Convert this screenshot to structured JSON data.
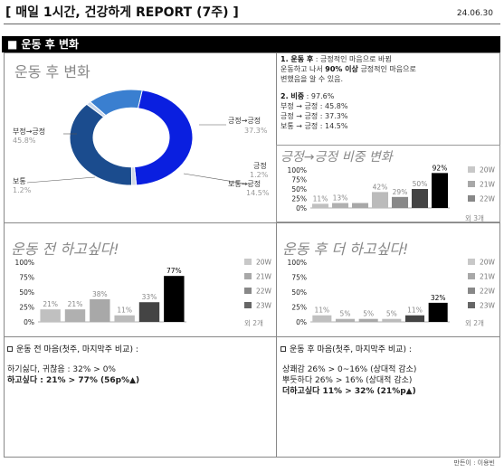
{
  "header": {
    "title": "[ 매일 1시간, 건강하게 REPORT (7주) ]",
    "date": "24.06.30"
  },
  "section_bar": "■ 운동 후 변화",
  "donut": {
    "title": "운동 후 변화",
    "labels": [
      {
        "name": "부정→긍정",
        "pct": "45.8%"
      },
      {
        "name": "보통",
        "pct": "1.2%"
      },
      {
        "name": "긍정→긍정",
        "pct": "37.3%"
      },
      {
        "name": "긍정",
        "pct": "1.2%"
      },
      {
        "name": "보통→긍정",
        "pct": "14.5%"
      }
    ],
    "colors": [
      "#0a1fe0",
      "#1b4c8e",
      "#3a7fd0",
      "#c8d6ec"
    ]
  },
  "notes": {
    "n1_title": "1. 운동 후",
    "n1_a": " : 긍정적인 마음으로 바뀜",
    "n1_b": "운동하고 나서",
    "n1_bold": "90% 이상",
    "n1_c": " 긍정적인 마음으로",
    "n1_d": "변했음을 알 수 있음.",
    "n2_title": "2. 비중",
    "n2_a": " : 97.6%",
    "n2_lines": [
      "부정 → 긍정 : 45.8%",
      "긍정 → 긍정 : 37.3%",
      "보통 → 긍정 : 14.5%"
    ]
  },
  "charts": {
    "ratio": {
      "title": "긍정→긍정 비중 변화",
      "note": "외 3개",
      "legend": [
        "20W",
        "21W",
        "22W"
      ],
      "legend_colors": [
        "#c8c8c8",
        "#a8a8a8",
        "#888888"
      ],
      "chart_data": {
        "type": "bar",
        "categories": [
          "1",
          "2",
          "3",
          "4",
          "5",
          "6",
          "7"
        ],
        "values": [
          11,
          13,
          13,
          42,
          29,
          50,
          92
        ],
        "labels": [
          "11%",
          "13%",
          "",
          "42%",
          "29%",
          "50%",
          "92%"
        ],
        "yticks": [
          "100%",
          "75%",
          "50%",
          "25%",
          "0%"
        ],
        "ylim": [
          0,
          100
        ]
      }
    },
    "before": {
      "title": "운동 전 하고싶다!",
      "note": "외 2개",
      "legend": [
        "20W",
        "21W",
        "22W",
        "23W"
      ],
      "legend_colors": [
        "#c8c8c8",
        "#a8a8a8",
        "#888888",
        "#666666"
      ],
      "chart_data": {
        "type": "bar",
        "categories": [
          "1",
          "2",
          "3",
          "4",
          "5",
          "6"
        ],
        "values": [
          21,
          21,
          38,
          11,
          33,
          77
        ],
        "labels": [
          "21%",
          "21%",
          "38%",
          "11%",
          "33%",
          "77%"
        ],
        "yticks": [
          "100%",
          "75%",
          "50%",
          "25%",
          "0%"
        ],
        "ylim": [
          0,
          100
        ]
      }
    },
    "after": {
      "title": "운동 후 더 하고싶다!",
      "note": "외 2개",
      "legend": [
        "20W",
        "21W",
        "22W",
        "23W"
      ],
      "legend_colors": [
        "#c8c8c8",
        "#a8a8a8",
        "#888888",
        "#666666"
      ],
      "chart_data": {
        "type": "bar",
        "categories": [
          "1",
          "2",
          "3",
          "4",
          "5",
          "6"
        ],
        "values": [
          11,
          5,
          5,
          5,
          11,
          32
        ],
        "labels": [
          "11%",
          "5%",
          "5%",
          "5%",
          "11%",
          "32%"
        ],
        "yticks": [
          "100%",
          "75%",
          "50%",
          "25%",
          "0%"
        ],
        "ylim": [
          0,
          100
        ]
      }
    }
  },
  "box_left": {
    "head": "운동 전 마음(첫주, 마지막주 비교) :",
    "line1": "하기싫다, 귀찮음 : 32% > 0%",
    "line2": "하고싶다 : 21% > 77% (56p%▲)"
  },
  "box_right": {
    "head": "운동 후 마음(첫주, 마지막주 비교) :",
    "line1": "상쾌감 26% > 0~16% (상대적 감소)",
    "line2": "뿌듯하다 26% > 16% (상대적 감소)",
    "line3": "더하고싶다 11% > 32% (21%p▲)"
  },
  "footer": "만든이 : 이용빈"
}
